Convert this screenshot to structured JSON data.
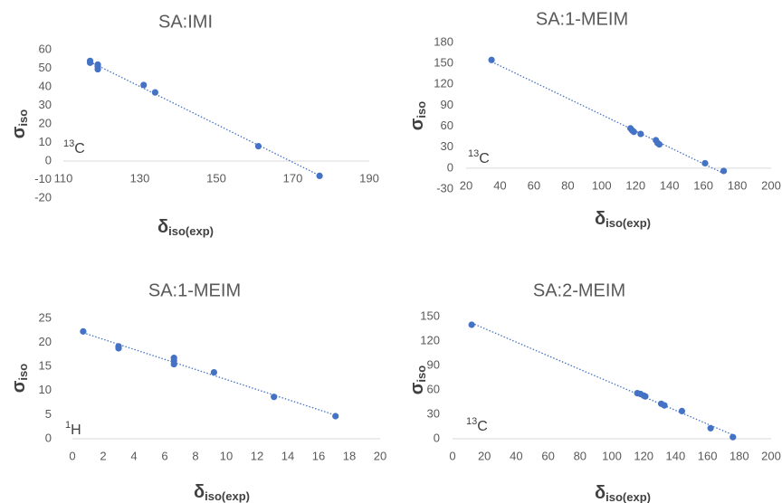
{
  "chart_data": [
    {
      "type": "scatter",
      "title": "SA:IMI",
      "x_label": "δ",
      "x_label_sub": "iso(exp)",
      "y_label": "σ",
      "y_label_sub": "iso",
      "annotation_sup": "13",
      "annotation": "C",
      "color": "#4472c4",
      "trendline": true,
      "x": [
        117,
        117,
        119,
        119,
        119,
        131,
        134,
        161,
        177
      ],
      "values": [
        54,
        53,
        52,
        51,
        49.5,
        41,
        37,
        8,
        -8
      ],
      "xlim": [
        110,
        190
      ],
      "xticks": [
        110,
        130,
        150,
        170,
        190
      ],
      "ylim": [
        -20,
        60
      ],
      "yticks": [
        -20,
        -10,
        0,
        10,
        20,
        30,
        40,
        50,
        60
      ]
    },
    {
      "type": "scatter",
      "title": "SA:1-MEIM",
      "x_label": "δ",
      "x_label_sub": "iso(exp)",
      "y_label": "σ",
      "y_label_sub": "iso",
      "annotation_sup": "13",
      "annotation": "C",
      "color": "#4472c4",
      "trendline": true,
      "x": [
        35,
        117,
        118,
        119,
        123,
        132,
        133,
        134,
        161,
        172
      ],
      "values": [
        155,
        57,
        54,
        52,
        49,
        40,
        36,
        34,
        7,
        -4
      ],
      "xlim": [
        20,
        200
      ],
      "xticks": [
        20,
        40,
        60,
        80,
        100,
        120,
        140,
        160,
        180,
        200
      ],
      "ylim": [
        -30,
        180
      ],
      "yticks": [
        -30,
        0,
        30,
        60,
        90,
        120,
        150,
        180
      ]
    },
    {
      "type": "scatter",
      "title": "SA:1-MEIM",
      "x_label": "δ",
      "x_label_sub": "iso(exp)",
      "y_label": "σ",
      "y_label_sub": "iso",
      "annotation_sup": "1",
      "annotation": "H",
      "color": "#4472c4",
      "trendline": true,
      "x": [
        0.7,
        3,
        3,
        6.6,
        6.6,
        6.6,
        9.2,
        13.1,
        17.1
      ],
      "values": [
        22.3,
        19.2,
        18.8,
        16.8,
        16.2,
        15.5,
        13.8,
        8.7,
        4.7
      ],
      "xlim": [
        0,
        20
      ],
      "xticks": [
        0,
        2,
        4,
        6,
        8,
        10,
        12,
        14,
        16,
        18,
        20
      ],
      "ylim": [
        0,
        25
      ],
      "yticks": [
        0,
        5,
        10,
        15,
        20,
        25
      ]
    },
    {
      "type": "scatter",
      "title": "SA:2-MEIM",
      "x_label": "δ",
      "x_label_sub": "iso(exp)",
      "y_label": "σ",
      "y_label_sub": "iso",
      "annotation_sup": "13",
      "annotation": "C",
      "color": "#4472c4",
      "trendline": true,
      "x": [
        12,
        116,
        118,
        120,
        121,
        131,
        133,
        144,
        162,
        176
      ],
      "values": [
        140,
        56,
        55,
        53,
        52,
        43,
        41,
        34,
        13,
        2
      ],
      "xlim": [
        0,
        200
      ],
      "xticks": [
        0,
        20,
        40,
        60,
        80,
        100,
        120,
        140,
        160,
        180,
        200
      ],
      "ylim": [
        0,
        150
      ],
      "yticks": [
        0,
        30,
        60,
        90,
        120,
        150
      ]
    }
  ]
}
